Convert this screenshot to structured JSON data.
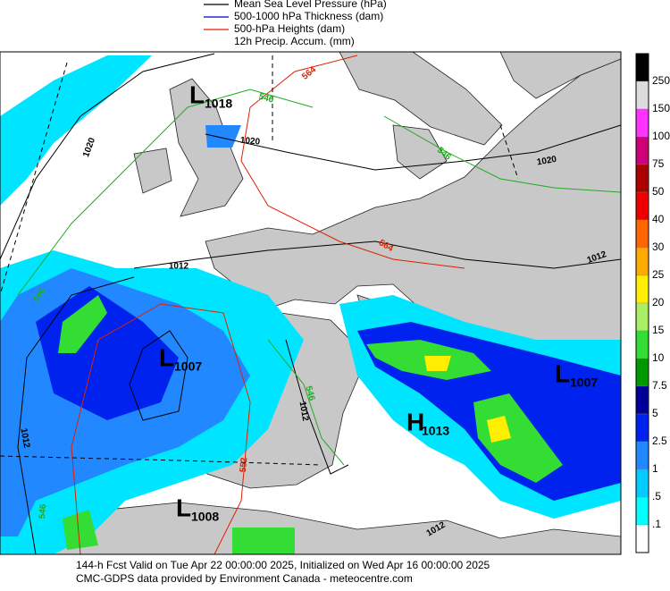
{
  "legend": [
    {
      "label": "Mean Sea Level Pressure (hPa)",
      "color": "#000000"
    },
    {
      "label": "500-1000 hPa Thickness (dam)",
      "color": "#0000cc"
    },
    {
      "label": "500-hPa Heights (dam)",
      "color": "#dd2200"
    },
    {
      "label": "12h Precip. Accum. (mm)"
    }
  ],
  "colorbar": {
    "colors": [
      "#000000",
      "#dcdcdc",
      "#ff33ff",
      "#cc0077",
      "#aa0000",
      "#ee0000",
      "#ff6600",
      "#ffaa00",
      "#ffee00",
      "#aaee66",
      "#33dd33",
      "#009900",
      "#000099",
      "#0022ee",
      "#2288ff",
      "#00ccff",
      "#00ffff",
      "#ffffff"
    ],
    "labels": [
      "250",
      "150",
      "100",
      "75",
      "50",
      "40",
      "30",
      "25",
      "20",
      "15",
      "10",
      "7.5",
      "5",
      "2.5",
      "1",
      ".5",
      ".1"
    ]
  },
  "centers": [
    {
      "letter": "L",
      "value": "1018"
    },
    {
      "letter": "L",
      "value": "1007"
    },
    {
      "letter": "L",
      "value": "1008"
    },
    {
      "letter": "H",
      "value": "1013"
    },
    {
      "letter": "L",
      "value": "1007"
    }
  ],
  "contour_labels": [
    {
      "text": "1020",
      "color": "#000000"
    },
    {
      "text": "1020",
      "color": "#000000"
    },
    {
      "text": "546",
      "color": "#22aa22"
    },
    {
      "text": "564",
      "color": "#dd2200"
    },
    {
      "text": "1020",
      "color": "#000000"
    },
    {
      "text": "546",
      "color": "#22aa22"
    },
    {
      "text": "564",
      "color": "#dd2200"
    },
    {
      "text": "1012",
      "color": "#000000"
    },
    {
      "text": "1012",
      "color": "#000000"
    },
    {
      "text": "546",
      "color": "#22aa22"
    },
    {
      "text": "546",
      "color": "#22aa22"
    },
    {
      "text": "1012",
      "color": "#000000"
    },
    {
      "text": "1012",
      "color": "#000000"
    },
    {
      "text": "552",
      "color": "#dd2200"
    },
    {
      "text": "546",
      "color": "#22aa22"
    },
    {
      "text": "1012",
      "color": "#000000"
    }
  ],
  "footer": [
    "144-h Fcst Valid on Tue Apr 22 00:00:00 2025, Initialized on Wed Apr 16 00:00:00 2025",
    "CMC-GDPS data provided by Environment Canada - meteocentre.com"
  ]
}
